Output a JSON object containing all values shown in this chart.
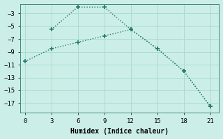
{
  "xlabel": "Humidex (Indice chaleur)",
  "line1_x": [
    3,
    6,
    9,
    12,
    15,
    18,
    21
  ],
  "line1_y": [
    -5.5,
    -2.0,
    -2.0,
    -5.5,
    -8.5,
    -12.0,
    -17.5
  ],
  "line2_x": [
    0,
    3,
    6,
    9,
    12,
    15,
    18,
    21
  ],
  "line2_y": [
    -10.5,
    -8.5,
    -7.5,
    -6.5,
    -5.5,
    -8.5,
    -12.0,
    -17.5
  ],
  "line_color": "#2a7a6e",
  "bg_color": "#cceee8",
  "grid_color": "#aaddcc",
  "xlim": [
    -0.5,
    22
  ],
  "ylim": [
    -18.5,
    -1.5
  ],
  "xticks": [
    0,
    3,
    6,
    9,
    12,
    15,
    18,
    21
  ],
  "yticks": [
    -17,
    -15,
    -13,
    -11,
    -9,
    -7,
    -5,
    -3
  ],
  "tick_fontsize": 6.5,
  "xlabel_fontsize": 7
}
